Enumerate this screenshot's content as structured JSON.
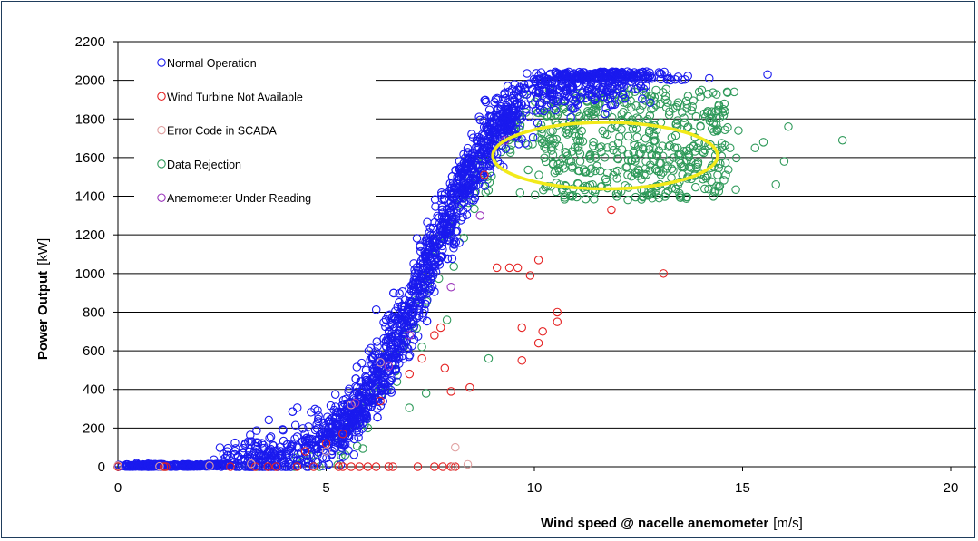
{
  "chart_data": {
    "type": "scatter",
    "title": "",
    "xlabel": {
      "main": "Wind speed @ nacelle anemometer",
      "unit": "[m/s]"
    },
    "ylabel": {
      "main": "Power Output",
      "unit": "[kW]"
    },
    "xlim": [
      0,
      20
    ],
    "ylim": [
      0,
      2200
    ],
    "xticks": [
      0,
      5,
      10,
      15,
      20
    ],
    "yticks": [
      0,
      200,
      400,
      600,
      800,
      1000,
      1200,
      1400,
      1600,
      1800,
      2000,
      2200
    ],
    "grid": "horizontal",
    "legend_position": "top-left",
    "marker": "hollow-circle",
    "series": [
      {
        "name": "Normal Operation",
        "color": "#1a1aee",
        "shape": "power-curve"
      },
      {
        "name": "Wind Turbine Not Available",
        "color": "#e52222",
        "points": [
          [
            0,
            0
          ],
          [
            1.1,
            0
          ],
          [
            1.15,
            0
          ],
          [
            2.7,
            0
          ],
          [
            3.3,
            0
          ],
          [
            3.6,
            0
          ],
          [
            3.8,
            0
          ],
          [
            4.3,
            0
          ],
          [
            4.7,
            0
          ],
          [
            5.3,
            0
          ],
          [
            5.4,
            0
          ],
          [
            5.6,
            0
          ],
          [
            5.8,
            0
          ],
          [
            6,
            0
          ],
          [
            6.2,
            0
          ],
          [
            6.5,
            0
          ],
          [
            6.6,
            0
          ],
          [
            7.2,
            0
          ],
          [
            7.6,
            0
          ],
          [
            7.8,
            0
          ],
          [
            8.0,
            0
          ],
          [
            8.1,
            0
          ],
          [
            4.5,
            80
          ],
          [
            5.0,
            120
          ],
          [
            5.4,
            170
          ],
          [
            6.3,
            340
          ],
          [
            7.0,
            480
          ],
          [
            7.3,
            560
          ],
          [
            7.6,
            680
          ],
          [
            7.75,
            720
          ],
          [
            7.85,
            510
          ],
          [
            8.0,
            390
          ],
          [
            8.45,
            410
          ],
          [
            8.8,
            1510
          ],
          [
            9.1,
            1030
          ],
          [
            9.4,
            1030
          ],
          [
            9.6,
            1030
          ],
          [
            9.7,
            550
          ],
          [
            9.7,
            720
          ],
          [
            9.9,
            990
          ],
          [
            10.1,
            640
          ],
          [
            10.1,
            1070
          ],
          [
            10.2,
            700
          ],
          [
            10.55,
            800
          ],
          [
            10.55,
            750
          ],
          [
            11.85,
            1330
          ],
          [
            13.1,
            1000
          ]
        ]
      },
      {
        "name": "Error Code in SCADA",
        "color": "#e0a0a0",
        "points": [
          [
            0,
            5
          ],
          [
            1.0,
            2
          ],
          [
            2.2,
            5
          ],
          [
            3.2,
            15
          ],
          [
            5.0,
            80
          ],
          [
            5.6,
            320
          ],
          [
            6.3,
            540
          ],
          [
            8.1,
            100
          ],
          [
            8.4,
            12
          ],
          [
            8.05,
            0
          ]
        ]
      },
      {
        "name": "Data Rejection",
        "color": "#2f9a5a",
        "shape": "scatter-cloud",
        "points": [
          [
            14.8,
            1940
          ],
          [
            16.1,
            1760
          ],
          [
            17.4,
            1690
          ],
          [
            16.0,
            1580
          ],
          [
            15.8,
            1460
          ],
          [
            14.4,
            1510
          ],
          [
            14.9,
            1740
          ],
          [
            14.3,
            1780
          ],
          [
            14.7,
            1650
          ],
          [
            14.1,
            1640
          ],
          [
            15.3,
            1650
          ],
          [
            15.5,
            1680
          ],
          [
            13.6,
            1550
          ],
          [
            13.9,
            1550
          ],
          [
            8.9,
            560
          ],
          [
            7.4,
            380
          ],
          [
            6.7,
            440
          ],
          [
            6.0,
            200
          ],
          [
            7.1,
            720
          ],
          [
            7.3,
            620
          ],
          [
            7.9,
            760
          ]
        ]
      },
      {
        "name": "Anemometer Under Reading",
        "color": "#9933bb",
        "points": [
          [
            5.7,
            330
          ],
          [
            6.5,
            520
          ],
          [
            7.0,
            680
          ],
          [
            8.0,
            930
          ],
          [
            8.7,
            1300
          ],
          [
            9.3,
            1690
          ]
        ]
      }
    ],
    "annotations": [
      {
        "type": "ellipse",
        "color": "#f2ea1a",
        "center": [
          11.7,
          1610
        ],
        "radii": [
          5.4,
          345
        ]
      }
    ]
  }
}
